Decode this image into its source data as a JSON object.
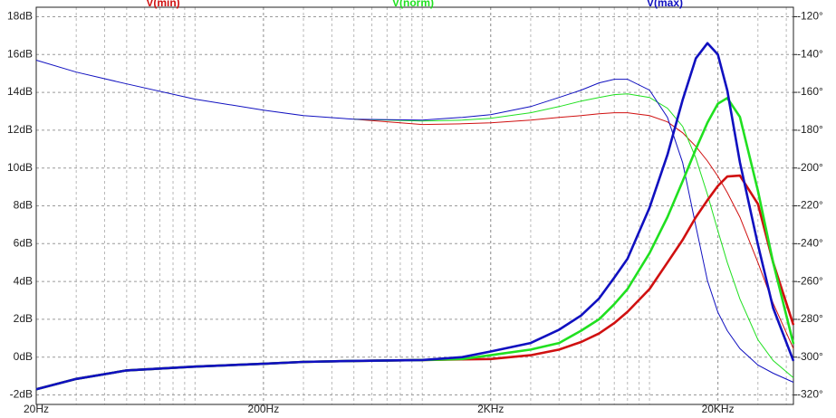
{
  "chart_data": {
    "type": "line",
    "x": [
      20,
      30,
      50,
      100,
      200,
      300,
      500,
      1000,
      1500,
      2000,
      3000,
      4000,
      5000,
      6000,
      7000,
      8000,
      10000,
      12000,
      14000,
      16000,
      18000,
      20000,
      22000,
      25000,
      30000,
      35000,
      43000
    ],
    "xlog": true,
    "xlim": [
      20,
      43000
    ],
    "xticks": [
      {
        "value": 20,
        "label": "20Hz"
      },
      {
        "value": 200,
        "label": "200Hz"
      },
      {
        "value": 2000,
        "label": "2KHz"
      },
      {
        "value": 20000,
        "label": "20KHz"
      }
    ],
    "ylim": [
      -2.5,
      18.5
    ],
    "yticks": [
      {
        "value": -2,
        "label": "-2dB"
      },
      {
        "value": 0,
        "label": "0dB"
      },
      {
        "value": 2,
        "label": "2dB"
      },
      {
        "value": 4,
        "label": "4dB"
      },
      {
        "value": 6,
        "label": "6dB"
      },
      {
        "value": 8,
        "label": "8dB"
      },
      {
        "value": 10,
        "label": "10dB"
      },
      {
        "value": 12,
        "label": "12dB"
      },
      {
        "value": 14,
        "label": "14dB"
      },
      {
        "value": 16,
        "label": "16dB"
      },
      {
        "value": 18,
        "label": "18dB"
      }
    ],
    "y2lim": [
      -325,
      -115
    ],
    "y2ticks": [
      {
        "value": -320,
        "label": "-320°"
      },
      {
        "value": -300,
        "label": "-300°"
      },
      {
        "value": -280,
        "label": "-280°"
      },
      {
        "value": -260,
        "label": "-260°"
      },
      {
        "value": -240,
        "label": "-240°"
      },
      {
        "value": -220,
        "label": "-220°"
      },
      {
        "value": -200,
        "label": "-200°"
      },
      {
        "value": -180,
        "label": "-180°"
      },
      {
        "value": -160,
        "label": "-160°"
      },
      {
        "value": -140,
        "label": "-140°"
      },
      {
        "value": -120,
        "label": "-120°"
      }
    ],
    "grid": true,
    "series": [
      {
        "name": "V(min)",
        "color": "#d01010",
        "values": [
          -1.7,
          -1.15,
          -0.7,
          -0.5,
          -0.35,
          -0.25,
          -0.2,
          -0.15,
          -0.12,
          -0.1,
          0.1,
          0.4,
          0.8,
          1.25,
          1.8,
          2.4,
          3.6,
          5.0,
          6.2,
          7.4,
          8.3,
          9.05,
          9.55,
          9.6,
          8.1,
          5.0,
          1.7
        ],
        "phase": [
          null,
          null,
          null,
          null,
          null,
          null,
          -174.2,
          -177,
          -176.6,
          -176.1,
          -174.7,
          -173.2,
          -172.3,
          -171.3,
          -170.8,
          -170.8,
          -172.3,
          -175.6,
          -181.4,
          -188.6,
          -196.3,
          -204.4,
          -213,
          -226,
          -250,
          -271.5,
          -295.5
        ]
      },
      {
        "name": "V(norm)",
        "color": "#20e020",
        "values": [
          -1.7,
          -1.15,
          -0.7,
          -0.5,
          -0.35,
          -0.25,
          -0.2,
          -0.15,
          -0.1,
          0.1,
          0.4,
          0.75,
          1.4,
          2.0,
          2.8,
          3.6,
          5.5,
          7.4,
          9.3,
          11.0,
          12.4,
          13.4,
          13.7,
          12.7,
          8.8,
          5.0,
          0.7
        ],
        "phase": [
          null,
          null,
          null,
          null,
          null,
          null,
          -174.2,
          -175.2,
          -174.7,
          -173.7,
          -170.8,
          -167.5,
          -164.6,
          -162.7,
          -161.2,
          -160.8,
          -162.7,
          -168.4,
          -178,
          -194.8,
          -214,
          -233.2,
          -250,
          -269.2,
          -290.8,
          -301.8,
          -310.9
        ]
      },
      {
        "name": "V(max)",
        "color": "#1010c0",
        "values": [
          -1.7,
          -1.15,
          -0.7,
          -0.5,
          -0.35,
          -0.25,
          -0.2,
          -0.15,
          0,
          0.3,
          0.75,
          1.45,
          2.2,
          3.1,
          4.2,
          5.2,
          7.9,
          10.7,
          13.6,
          15.8,
          16.6,
          16.0,
          14.1,
          10.3,
          5.95,
          2.6,
          -0.2
        ],
        "phase": [
          -143,
          -149.3,
          -155.5,
          -163.6,
          -169.4,
          -172.3,
          -174.2,
          -174.7,
          -173.2,
          -171.8,
          -167.5,
          -162.7,
          -158.8,
          -155,
          -153.1,
          -153.1,
          -158.8,
          -173.2,
          -197.2,
          -230.8,
          -259.6,
          -276.3,
          -286,
          -295.5,
          -304.2,
          -308.5,
          -313.3
        ]
      }
    ]
  }
}
